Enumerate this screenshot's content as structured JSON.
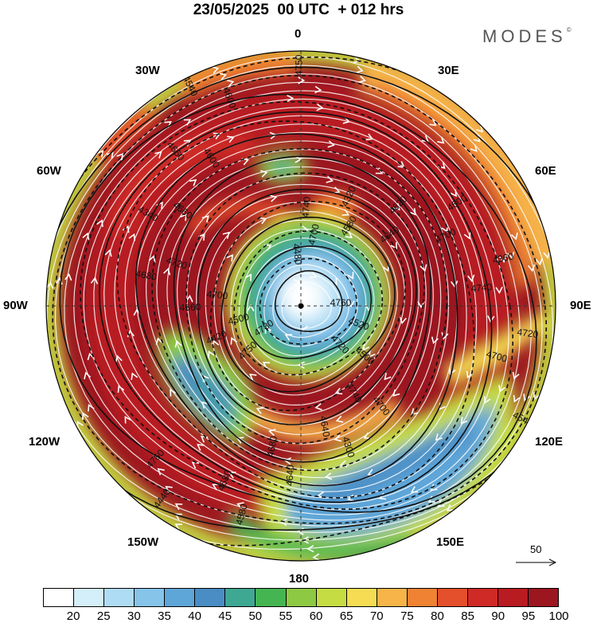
{
  "title": "23/05/2025  00 UTC  + 012 hrs",
  "brand": "MODES",
  "brand_mark": "©",
  "meridian_labels": {
    "n0": "0",
    "e30": "30E",
    "e60": "60E",
    "e90": "90E",
    "e120": "120E",
    "e150": "150E",
    "s180": "180",
    "w150": "150W",
    "w120": "120W",
    "w90": "90W",
    "w60": "60W",
    "w30": "30W"
  },
  "contour_labels": [
    "4760",
    "4750",
    "4740",
    "4700",
    "4680",
    "4600",
    "4580",
    "4540",
    "4520",
    "4420",
    "4320",
    "4300",
    "4340",
    "4360",
    "4440",
    "4480",
    "4500",
    "4560",
    "4620",
    "4640",
    "4660",
    "4720",
    "4780",
    "4700",
    "4740",
    "4720",
    "4700",
    "4680",
    "4600",
    "4540",
    "4500",
    "4580",
    "4640",
    "4660",
    "4740",
    "4760",
    "4750",
    "4720",
    "4700",
    "4640",
    "4680",
    "4600",
    "4700"
  ],
  "legend": {
    "values": [
      20,
      25,
      30,
      35,
      40,
      45,
      50,
      55,
      60,
      65,
      70,
      75,
      80,
      85,
      90,
      95,
      100
    ],
    "labels": [
      "20",
      "25",
      "30",
      "35",
      "40",
      "45",
      "50",
      "55",
      "60",
      "65",
      "70",
      "75",
      "80",
      "85",
      "90",
      "95",
      "100"
    ],
    "colors": [
      "#ffffff",
      "#d4eefa",
      "#aedcf4",
      "#86c4ea",
      "#5fa6d8",
      "#4a8cc4",
      "#3fa893",
      "#45b552",
      "#8ec943",
      "#c5dc43",
      "#f5dc52",
      "#f6b449",
      "#ef8233",
      "#e3502b",
      "#cf2a26",
      "#b81b22",
      "#9c1620"
    ]
  },
  "vector_scale": {
    "value": "50"
  },
  "colors": {
    "background": "#ffffff",
    "contour": "#111111",
    "arrows": "#ffffff",
    "grid": "#333333"
  }
}
